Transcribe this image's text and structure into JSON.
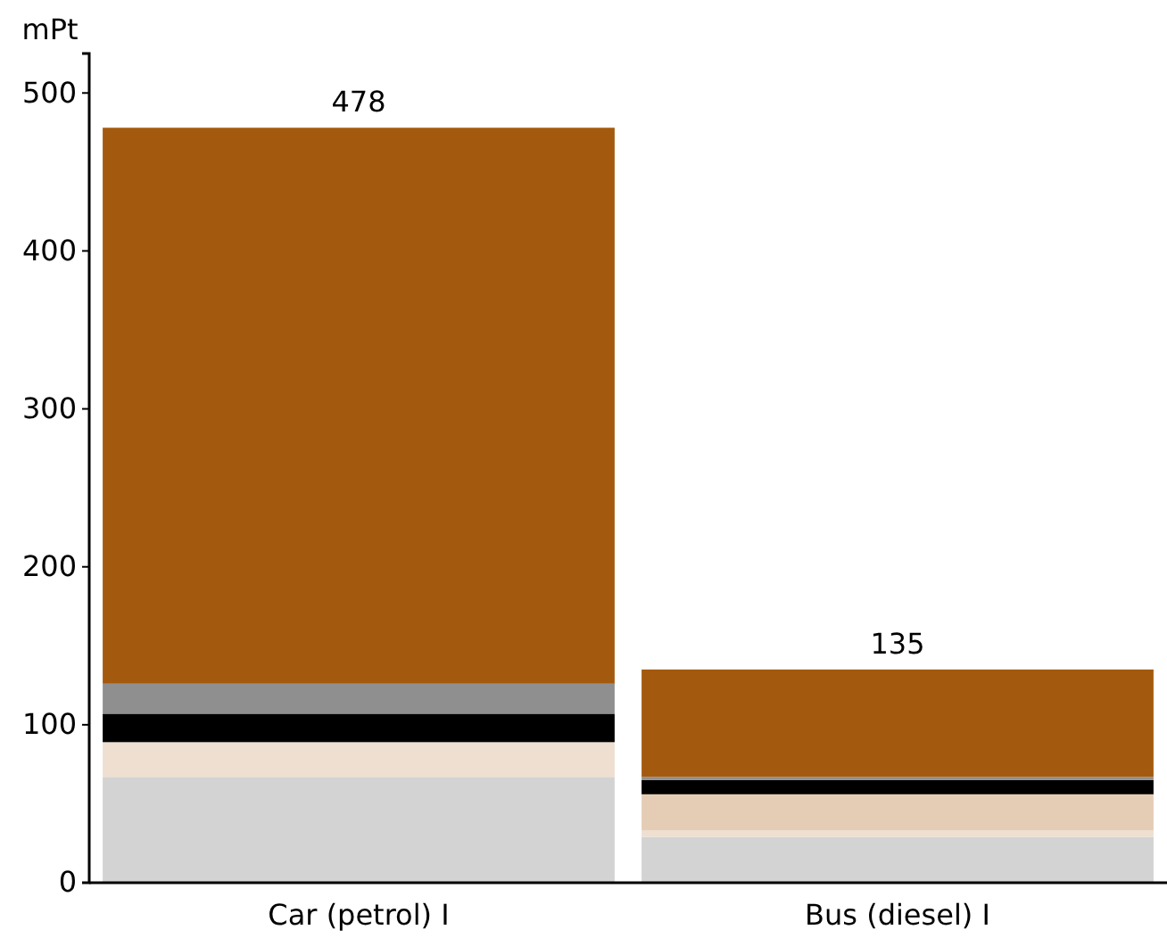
{
  "chart_data": {
    "type": "bar",
    "stacked": true,
    "ylabel": "mPt",
    "categories": [
      "Car (petrol) I",
      "Bus (diesel) I"
    ],
    "series": [
      {
        "color": "#d3d3d3",
        "values": [
          67,
          29
        ]
      },
      {
        "color": "#eedfd0",
        "values": [
          22,
          4
        ]
      },
      {
        "color": "#e5cdb5",
        "values": [
          0,
          23
        ]
      },
      {
        "color": "#000000",
        "values": [
          18,
          9
        ]
      },
      {
        "color": "#8f8f8f",
        "values": [
          19,
          2
        ]
      },
      {
        "color": "#a45a0e",
        "values": [
          352,
          68
        ]
      }
    ],
    "totals": [
      "478",
      "135"
    ],
    "ylim": [
      0,
      525
    ],
    "yticks": [
      0,
      100,
      200,
      300,
      400,
      500
    ],
    "grid": false
  }
}
